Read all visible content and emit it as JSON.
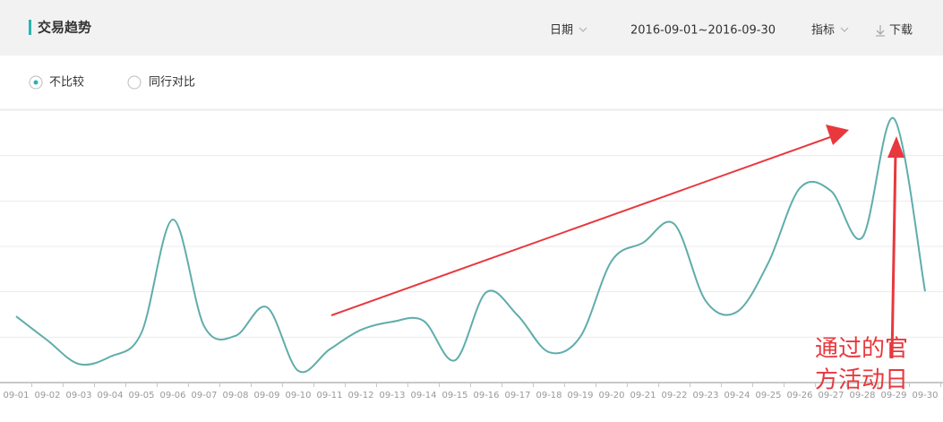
{
  "header": {
    "title": "交易趋势",
    "date_label": "日期",
    "date_range": "2016-09-01~2016-09-30",
    "metric_label": "指标",
    "download": "下载"
  },
  "options": [
    "不比较",
    "同行对比"
  ],
  "chart_data": {
    "type": "line",
    "categories": [
      "09-01",
      "09-02",
      "09-03",
      "09-04",
      "09-05",
      "09-06",
      "09-07",
      "09-08",
      "09-09",
      "09-10",
      "09-11",
      "09-12",
      "09-13",
      "09-14",
      "09-15",
      "09-16",
      "09-17",
      "09-18",
      "09-19",
      "09-20",
      "09-21",
      "09-22",
      "09-23",
      "09-24",
      "09-25",
      "09-26",
      "09-27",
      "09-28",
      "09-29",
      "09-30"
    ],
    "values": [
      1.46,
      0.93,
      0.41,
      0.57,
      1.1,
      3.59,
      1.24,
      1.03,
      1.66,
      0.26,
      0.73,
      1.16,
      1.34,
      1.36,
      0.49,
      1.99,
      1.48,
      0.67,
      1.01,
      2.68,
      3.08,
      3.49,
      1.8,
      1.56,
      2.64,
      4.28,
      4.22,
      3.2,
      5.82,
      2.01
    ],
    "color": "#5fadab",
    "ylim": [
      0,
      6
    ],
    "grid": true,
    "annotation": [
      "通过的官",
      "方活动日"
    ]
  }
}
